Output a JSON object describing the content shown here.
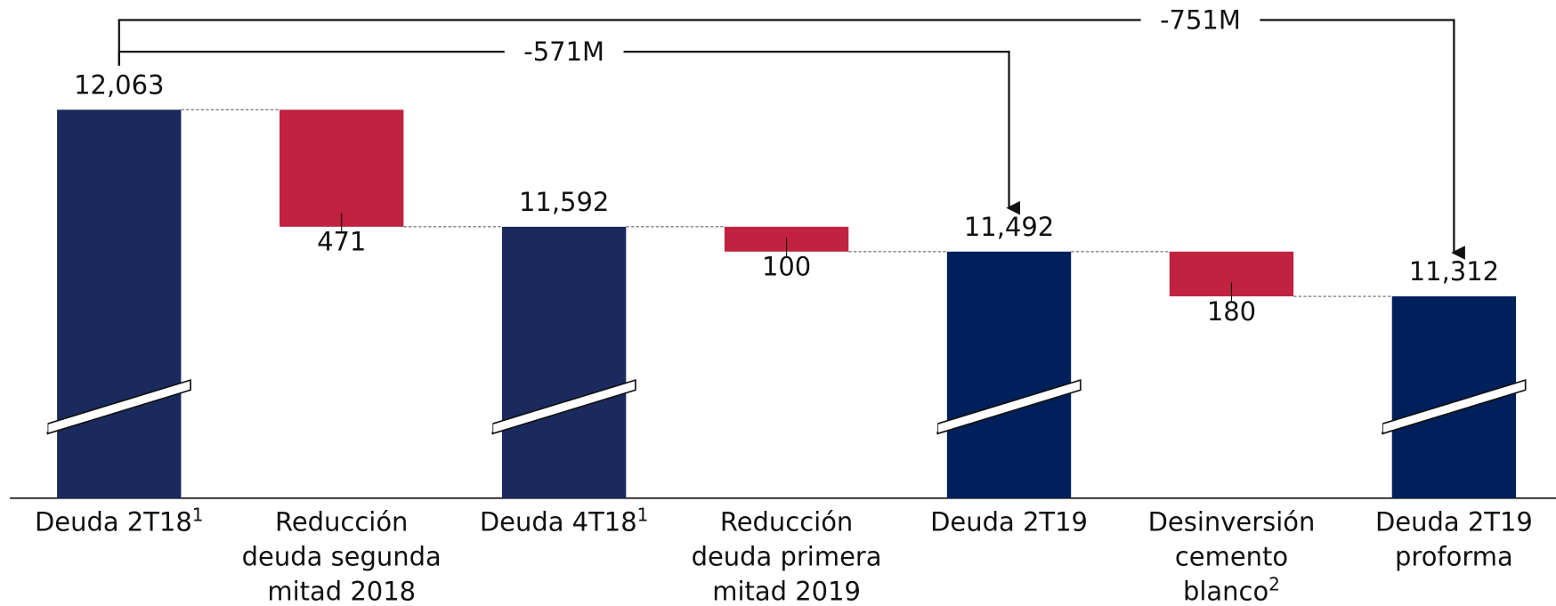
{
  "chart_data": {
    "type": "waterfall",
    "categories": [
      [
        "Deuda 2T18"
      ],
      [
        "Reducción",
        "deuda segunda",
        "mitad 2018"
      ],
      [
        "Deuda 4T18"
      ],
      [
        "Reducción",
        "deuda primera",
        "mitad 2019"
      ],
      [
        "Deuda 2T19"
      ],
      [
        "Desinversión",
        "cemento",
        "blanco"
      ],
      [
        "Deuda 2T19",
        "proforma"
      ]
    ],
    "category_notes": [
      "1",
      null,
      "1",
      null,
      null,
      "2",
      null
    ],
    "measures": [
      "total",
      "decrease",
      "total",
      "decrease",
      "total",
      "decrease",
      "total"
    ],
    "values": [
      12063,
      471,
      11592,
      100,
      11492,
      180,
      11312
    ],
    "value_labels": [
      "12,063",
      "471",
      "11,592",
      "100",
      "11,492",
      "180",
      "11,312"
    ],
    "colors": [
      "#1b2a5e",
      "#c0223f",
      "#1b2a5e",
      "#c0223f",
      "#00205b",
      "#c0223f",
      "#00205b"
    ],
    "ylim": [
      10500,
      12500
    ],
    "axis_break": true,
    "annotations": [
      {
        "text": "-571M",
        "from": 0,
        "to": 4
      },
      {
        "text": "-751M",
        "from": 0,
        "to": 6
      }
    ]
  }
}
